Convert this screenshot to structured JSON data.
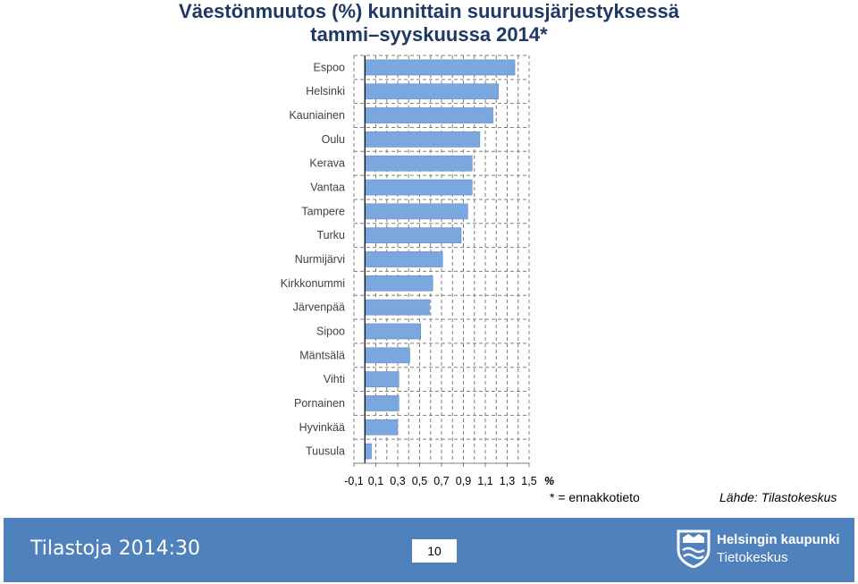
{
  "chart_data": {
    "type": "bar",
    "orientation": "horizontal",
    "title": "Väestönmuutos (%) kunnittain suuruusjärjestyksessä",
    "subtitle": "tammi–syyskuussa 2014*",
    "categories": [
      "Espoo",
      "Helsinki",
      "Kauniainen",
      "Oulu",
      "Kerava",
      "Vantaa",
      "Tampere",
      "Turku",
      "Nurmijärvi",
      "Kirkkonummi",
      "Järvenpää",
      "Sipoo",
      "Mäntsälä",
      "Vihti",
      "Pornainen",
      "Hyvinkää",
      "Tuusula"
    ],
    "values": [
      1.37,
      1.22,
      1.17,
      1.05,
      0.98,
      0.98,
      0.94,
      0.88,
      0.71,
      0.62,
      0.59,
      0.51,
      0.41,
      0.31,
      0.31,
      0.3,
      0.06
    ],
    "xlim": [
      -0.1,
      1.5
    ],
    "xticks": [
      "-0,1",
      "0,1",
      "0,3",
      "0,5",
      "0,7",
      "0,9",
      "1,1",
      "1,3",
      "1,5"
    ],
    "xunit": "%",
    "grid": true,
    "bar_color": "#7aa7de",
    "footnote": "* = ennakkotieto",
    "source": "Lähde: Tilastokeskus"
  },
  "footer": {
    "title": "Tilastoja 2014:30",
    "page": "10",
    "logo_line1": "Helsingin kaupunki",
    "logo_line2": "Tietokeskus",
    "bg_color": "#4f81bd"
  }
}
